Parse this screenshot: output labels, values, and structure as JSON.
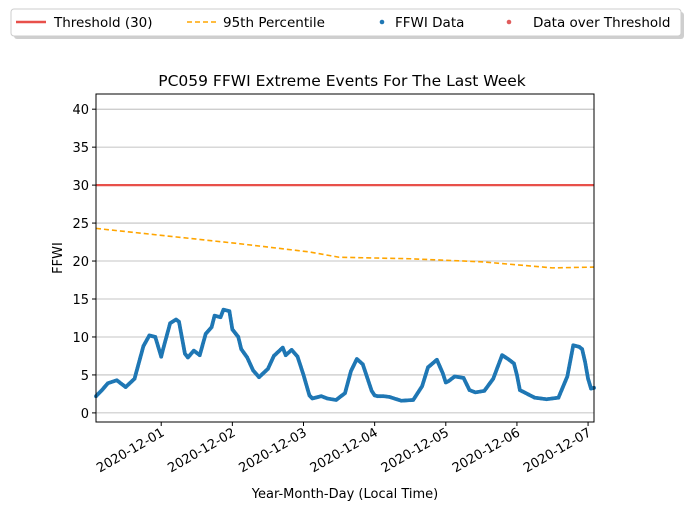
{
  "chart_data": {
    "type": "line",
    "title": "PC059 FFWI Extreme Events For The Last Week",
    "xlabel": "Year-Month-Day (Local Time)",
    "ylabel": "FFWI",
    "xlim": [
      "2020-11-30 02:00",
      "2020-12-07 02:00"
    ],
    "ylim": [
      -1.2,
      42
    ],
    "yticks": [
      "0",
      "5",
      "10",
      "15",
      "20",
      "25",
      "30",
      "35",
      "40"
    ],
    "xticks": [
      "2020-12-01",
      "2020-12-02",
      "2020-12-03",
      "2020-12-04",
      "2020-12-05",
      "2020-12-06",
      "2020-12-07"
    ],
    "grid": "horizontal",
    "legend_position": "top, outside plot",
    "legend": [
      "Threshold (30)",
      "95th Percentile",
      "FFWI Data",
      "Data over Threshold"
    ],
    "colors": {
      "threshold": "#e8504a",
      "percentile": "#ffa500",
      "data": "#1f77b4",
      "over_threshold": "#e05c5c"
    },
    "series": [
      {
        "name": "Threshold (30)",
        "style": "solid",
        "x": [
          "2020-11-30 02:00",
          "2020-12-07 02:00"
        ],
        "y": [
          30,
          30
        ]
      },
      {
        "name": "95th Percentile",
        "style": "dashed",
        "x": [
          "2020-11-30 02:00",
          "2020-12-01 02:00",
          "2020-12-02 02:00",
          "2020-12-03 02:00",
          "2020-12-03 12:00",
          "2020-12-04 12:00",
          "2020-12-05 12:00",
          "2020-12-06 12:00",
          "2020-12-07 02:00"
        ],
        "y": [
          24.3,
          23.3,
          22.3,
          21.2,
          20.5,
          20.3,
          19.9,
          19.1,
          19.2
        ]
      },
      {
        "name": "FFWI Data",
        "style": "points",
        "x": [
          "2020-11-30 02:00",
          "2020-11-30 04:00",
          "2020-11-30 06:00",
          "2020-11-30 09:00",
          "2020-11-30 11:00",
          "2020-11-30 12:00",
          "2020-11-30 15:00",
          "2020-11-30 18:00",
          "2020-11-30 20:00",
          "2020-11-30 22:00",
          "2020-12-01 00:00",
          "2020-12-01 00:30",
          "2020-12-01 03:00",
          "2020-12-01 05:00",
          "2020-12-01 06:00",
          "2020-12-01 08:00",
          "2020-12-01 09:00",
          "2020-12-01 11:00",
          "2020-12-01 13:00",
          "2020-12-01 15:00",
          "2020-12-01 17:00",
          "2020-12-01 18:00",
          "2020-12-01 20:00",
          "2020-12-01 21:00",
          "2020-12-01 23:00",
          "2020-12-02 00:00",
          "2020-12-02 02:00",
          "2020-12-02 03:00",
          "2020-12-02 05:00",
          "2020-12-02 07:00",
          "2020-12-02 09:00",
          "2020-12-02 12:00",
          "2020-12-02 14:00",
          "2020-12-02 17:00",
          "2020-12-02 18:00",
          "2020-12-02 20:00",
          "2020-12-02 22:00",
          "2020-12-03 00:00",
          "2020-12-03 02:00",
          "2020-12-03 03:00",
          "2020-12-03 04:00",
          "2020-12-03 06:00",
          "2020-12-03 08:00",
          "2020-12-03 11:00",
          "2020-12-03 14:00",
          "2020-12-03 16:00",
          "2020-12-03 18:00",
          "2020-12-03 20:00",
          "2020-12-03 23:00",
          "2020-12-04 00:00",
          "2020-12-04 01:00",
          "2020-12-04 03:00",
          "2020-12-04 05:00",
          "2020-12-04 09:00",
          "2020-12-04 13:00",
          "2020-12-04 16:00",
          "2020-12-04 18:00",
          "2020-12-04 21:00",
          "2020-12-04 23:00",
          "2020-12-05 00:00",
          "2020-12-05 01:00",
          "2020-12-05 03:00",
          "2020-12-05 06:00",
          "2020-12-05 08:00",
          "2020-12-05 10:00",
          "2020-12-05 13:00",
          "2020-12-05 16:00",
          "2020-12-05 19:00",
          "2020-12-05 21:00",
          "2020-12-05 23:00",
          "2020-12-06 00:00",
          "2020-12-06 01:00",
          "2020-12-06 03:00",
          "2020-12-06 06:00",
          "2020-12-06 10:00",
          "2020-12-06 14:00",
          "2020-12-06 17:00",
          "2020-12-06 19:00",
          "2020-12-06 21:00",
          "2020-12-06 22:00",
          "2020-12-06 23:00",
          "2020-12-07 00:00",
          "2020-12-07 01:00",
          "2020-12-07 02:00"
        ],
        "y": [
          2.2,
          3.0,
          3.9,
          4.3,
          3.7,
          3.4,
          4.5,
          8.8,
          10.2,
          10.0,
          7.4,
          8.2,
          11.8,
          12.3,
          12.0,
          7.8,
          7.3,
          8.2,
          7.6,
          10.4,
          11.3,
          12.8,
          12.6,
          13.6,
          13.4,
          11.0,
          10.0,
          8.4,
          7.3,
          5.6,
          4.7,
          5.8,
          7.5,
          8.6,
          7.6,
          8.3,
          7.4,
          5.0,
          2.3,
          1.9,
          2.0,
          2.2,
          1.9,
          1.7,
          2.6,
          5.5,
          7.1,
          6.4,
          2.9,
          2.3,
          2.2,
          2.2,
          2.1,
          1.6,
          1.7,
          3.5,
          6.0,
          7.0,
          5.2,
          4.0,
          4.2,
          4.8,
          4.6,
          3.0,
          2.7,
          2.9,
          4.5,
          7.6,
          7.1,
          6.5,
          5.0,
          3.0,
          2.6,
          2.0,
          1.8,
          2.0,
          4.8,
          8.9,
          8.7,
          8.4,
          6.7,
          4.5,
          3.2,
          3.3
        ]
      },
      {
        "name": "Data over Threshold",
        "style": "points",
        "x": [],
        "y": []
      }
    ]
  }
}
